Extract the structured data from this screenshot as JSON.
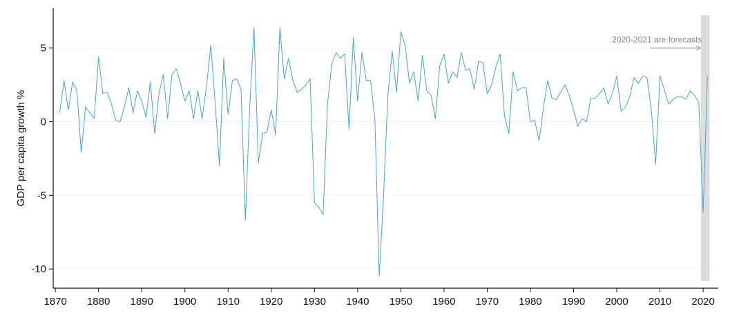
{
  "chart_data": {
    "type": "line",
    "ylabel": "GDP per capita growth %",
    "xlabel": "",
    "title": "",
    "xlim": [
      1869.5,
      2023.5
    ],
    "ylim": [
      -11.3,
      7.7
    ],
    "grid": "horizontal",
    "x_ticks": [
      1870,
      1880,
      1890,
      1900,
      1910,
      1920,
      1930,
      1940,
      1950,
      1960,
      1970,
      1980,
      1990,
      2000,
      2010,
      2020
    ],
    "y_ticks": [
      5,
      0,
      -5,
      -10
    ],
    "y_tick_labels": [
      "5",
      "0",
      "-5",
      "-10"
    ],
    "forecast_band": {
      "x_start": 2019.5,
      "x_end": 2021.5
    },
    "annotation": {
      "text": "2020-2021 are forecasts",
      "arrow_from_x": 2007.8,
      "arrow_to_x": 2019.4,
      "arrow_y": 5
    },
    "colors": {
      "line": "#4aa3bf",
      "band": "#dcdcdf",
      "axis": "#111111",
      "grid": "#f2eef6",
      "annotation": "#8a8595"
    },
    "series": [
      {
        "x": [
          1871,
          1872,
          1873,
          1874,
          1875,
          1876,
          1877,
          1878,
          1879,
          1880,
          1881,
          1882,
          1883,
          1884,
          1885,
          1886,
          1887,
          1888,
          1889,
          1890,
          1891,
          1892,
          1893,
          1894,
          1895,
          1896,
          1897,
          1898,
          1899,
          1900,
          1901,
          1902,
          1903,
          1904,
          1905,
          1906,
          1907,
          1908,
          1909,
          1910,
          1911,
          1912,
          1913,
          1914,
          1915,
          1916,
          1917,
          1918,
          1919,
          1920,
          1921,
          1922,
          1923,
          1924,
          1925,
          1926,
          1927,
          1928,
          1929,
          1930,
          1931,
          1932,
          1933,
          1934,
          1935,
          1936,
          1937,
          1938,
          1939,
          1940,
          1941,
          1942,
          1943,
          1944,
          1945,
          1946,
          1947,
          1948,
          1949,
          1950,
          1951,
          1952,
          1953,
          1954,
          1955,
          1956,
          1957,
          1958,
          1959,
          1960,
          1961,
          1962,
          1963,
          1964,
          1965,
          1966,
          1967,
          1968,
          1969,
          1970,
          1971,
          1972,
          1973,
          1974,
          1975,
          1976,
          1977,
          1978,
          1979,
          1980,
          1981,
          1982,
          1983,
          1984,
          1985,
          1986,
          1987,
          1988,
          1989,
          1990,
          1991,
          1992,
          1993,
          1994,
          1995,
          1996,
          1997,
          1998,
          1999,
          2000,
          2001,
          2002,
          2003,
          2004,
          2005,
          2006,
          2007,
          2008,
          2009,
          2010,
          2011,
          2012,
          2013,
          2014,
          2015,
          2016,
          2017,
          2018,
          2019,
          2020,
          2021
        ],
        "y": [
          0.6,
          2.8,
          0.8,
          2.7,
          2.1,
          -2.1,
          1.0,
          0.6,
          0.2,
          4.4,
          1.9,
          2.0,
          1.2,
          0.1,
          0.0,
          1.0,
          2.3,
          0.6,
          2.1,
          1.4,
          0.3,
          2.7,
          -0.8,
          1.9,
          3.2,
          0.2,
          3.2,
          3.6,
          2.6,
          1.4,
          2.1,
          0.2,
          2.1,
          0.2,
          2.4,
          5.2,
          1.3,
          -3.0,
          4.3,
          0.5,
          2.8,
          2.9,
          2.2,
          -6.7,
          0.9,
          6.4,
          -2.8,
          -0.8,
          -0.7,
          0.8,
          -0.9,
          6.4,
          2.9,
          4.3,
          2.8,
          2.0,
          2.2,
          2.5,
          2.9,
          -5.5,
          -5.8,
          -6.3,
          1.1,
          3.9,
          4.7,
          4.3,
          4.6,
          -0.5,
          5.7,
          1.4,
          4.7,
          2.8,
          2.8,
          0.1,
          -10.5,
          -5.0,
          1.8,
          4.8,
          2.0,
          6.1,
          5.2,
          2.6,
          3.4,
          1.4,
          4.5,
          2.1,
          1.8,
          0.2,
          3.8,
          4.6,
          2.6,
          3.4,
          3.0,
          4.7,
          3.5,
          3.6,
          2.2,
          4.1,
          4.0,
          1.9,
          2.5,
          3.7,
          4.6,
          0.4,
          -0.8,
          3.4,
          2.1,
          2.3,
          2.3,
          0.0,
          0.1,
          -1.3,
          0.9,
          2.8,
          1.6,
          1.5,
          2.0,
          2.5,
          1.8,
          0.8,
          -0.3,
          0.2,
          0.0,
          1.6,
          1.6,
          1.9,
          2.3,
          1.2,
          1.9,
          3.1,
          0.7,
          1.0,
          1.7,
          3.0,
          2.6,
          3.1,
          3.0,
          0.8,
          -2.9,
          3.1,
          2.2,
          1.2,
          1.5,
          1.7,
          1.7,
          1.5,
          2.1,
          1.8,
          1.3,
          -6.2,
          3.1
        ]
      }
    ]
  }
}
